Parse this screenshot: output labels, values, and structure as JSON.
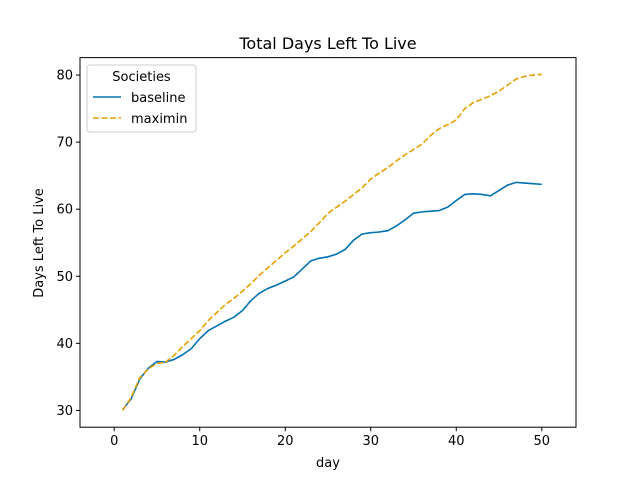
{
  "chart_data": {
    "type": "line",
    "title": "Total Days Left To Live",
    "xlabel": "day",
    "ylabel": "Days Left To Live",
    "xlim": [
      -4,
      54
    ],
    "ylim": [
      27.5,
      82.6
    ],
    "xticks": [
      0,
      10,
      20,
      30,
      40,
      50
    ],
    "yticks": [
      30,
      40,
      50,
      60,
      70,
      80
    ],
    "grid": false,
    "legend": {
      "title": "Societies",
      "placement": "top-left"
    },
    "x": [
      1,
      2,
      3,
      4,
      5,
      6,
      7,
      8,
      9,
      10,
      11,
      12,
      13,
      14,
      15,
      16,
      17,
      18,
      19,
      20,
      21,
      22,
      23,
      24,
      25,
      26,
      27,
      28,
      29,
      30,
      31,
      32,
      33,
      34,
      35,
      36,
      37,
      38,
      39,
      40,
      41,
      42,
      43,
      44,
      45,
      46,
      47,
      48,
      49,
      50
    ],
    "series": [
      {
        "name": "baseline",
        "color": "#0072b2",
        "style": "solid",
        "values": [
          30.1,
          31.8,
          34.7,
          36.3,
          37.3,
          37.2,
          37.6,
          38.3,
          39.2,
          40.7,
          41.9,
          42.6,
          43.3,
          43.9,
          44.9,
          46.4,
          47.5,
          48.2,
          48.7,
          49.3,
          49.9,
          51.1,
          52.3,
          52.7,
          52.9,
          53.3,
          54.0,
          55.4,
          56.3,
          56.5,
          56.6,
          56.8,
          57.5,
          58.4,
          59.4,
          59.6,
          59.7,
          59.8,
          60.3,
          61.3,
          62.2,
          62.3,
          62.2,
          62.0,
          62.8,
          63.6,
          64.0,
          63.9,
          63.8,
          63.7
        ]
      },
      {
        "name": "maximin",
        "color": "#e69f00",
        "style": "dashed",
        "values": [
          30.0,
          32.0,
          34.9,
          36.2,
          37.0,
          37.2,
          38.2,
          39.5,
          40.7,
          41.9,
          43.4,
          44.6,
          45.8,
          46.7,
          47.8,
          48.9,
          50.2,
          51.3,
          52.4,
          53.5,
          54.5,
          55.6,
          56.7,
          58.0,
          59.4,
          60.3,
          61.2,
          62.2,
          63.2,
          64.5,
          65.4,
          66.2,
          67.2,
          68.1,
          68.9,
          69.7,
          71.0,
          72.0,
          72.6,
          73.3,
          75.0,
          75.9,
          76.4,
          76.9,
          77.6,
          78.5,
          79.4,
          79.8,
          80.0,
          80.1
        ]
      }
    ]
  }
}
